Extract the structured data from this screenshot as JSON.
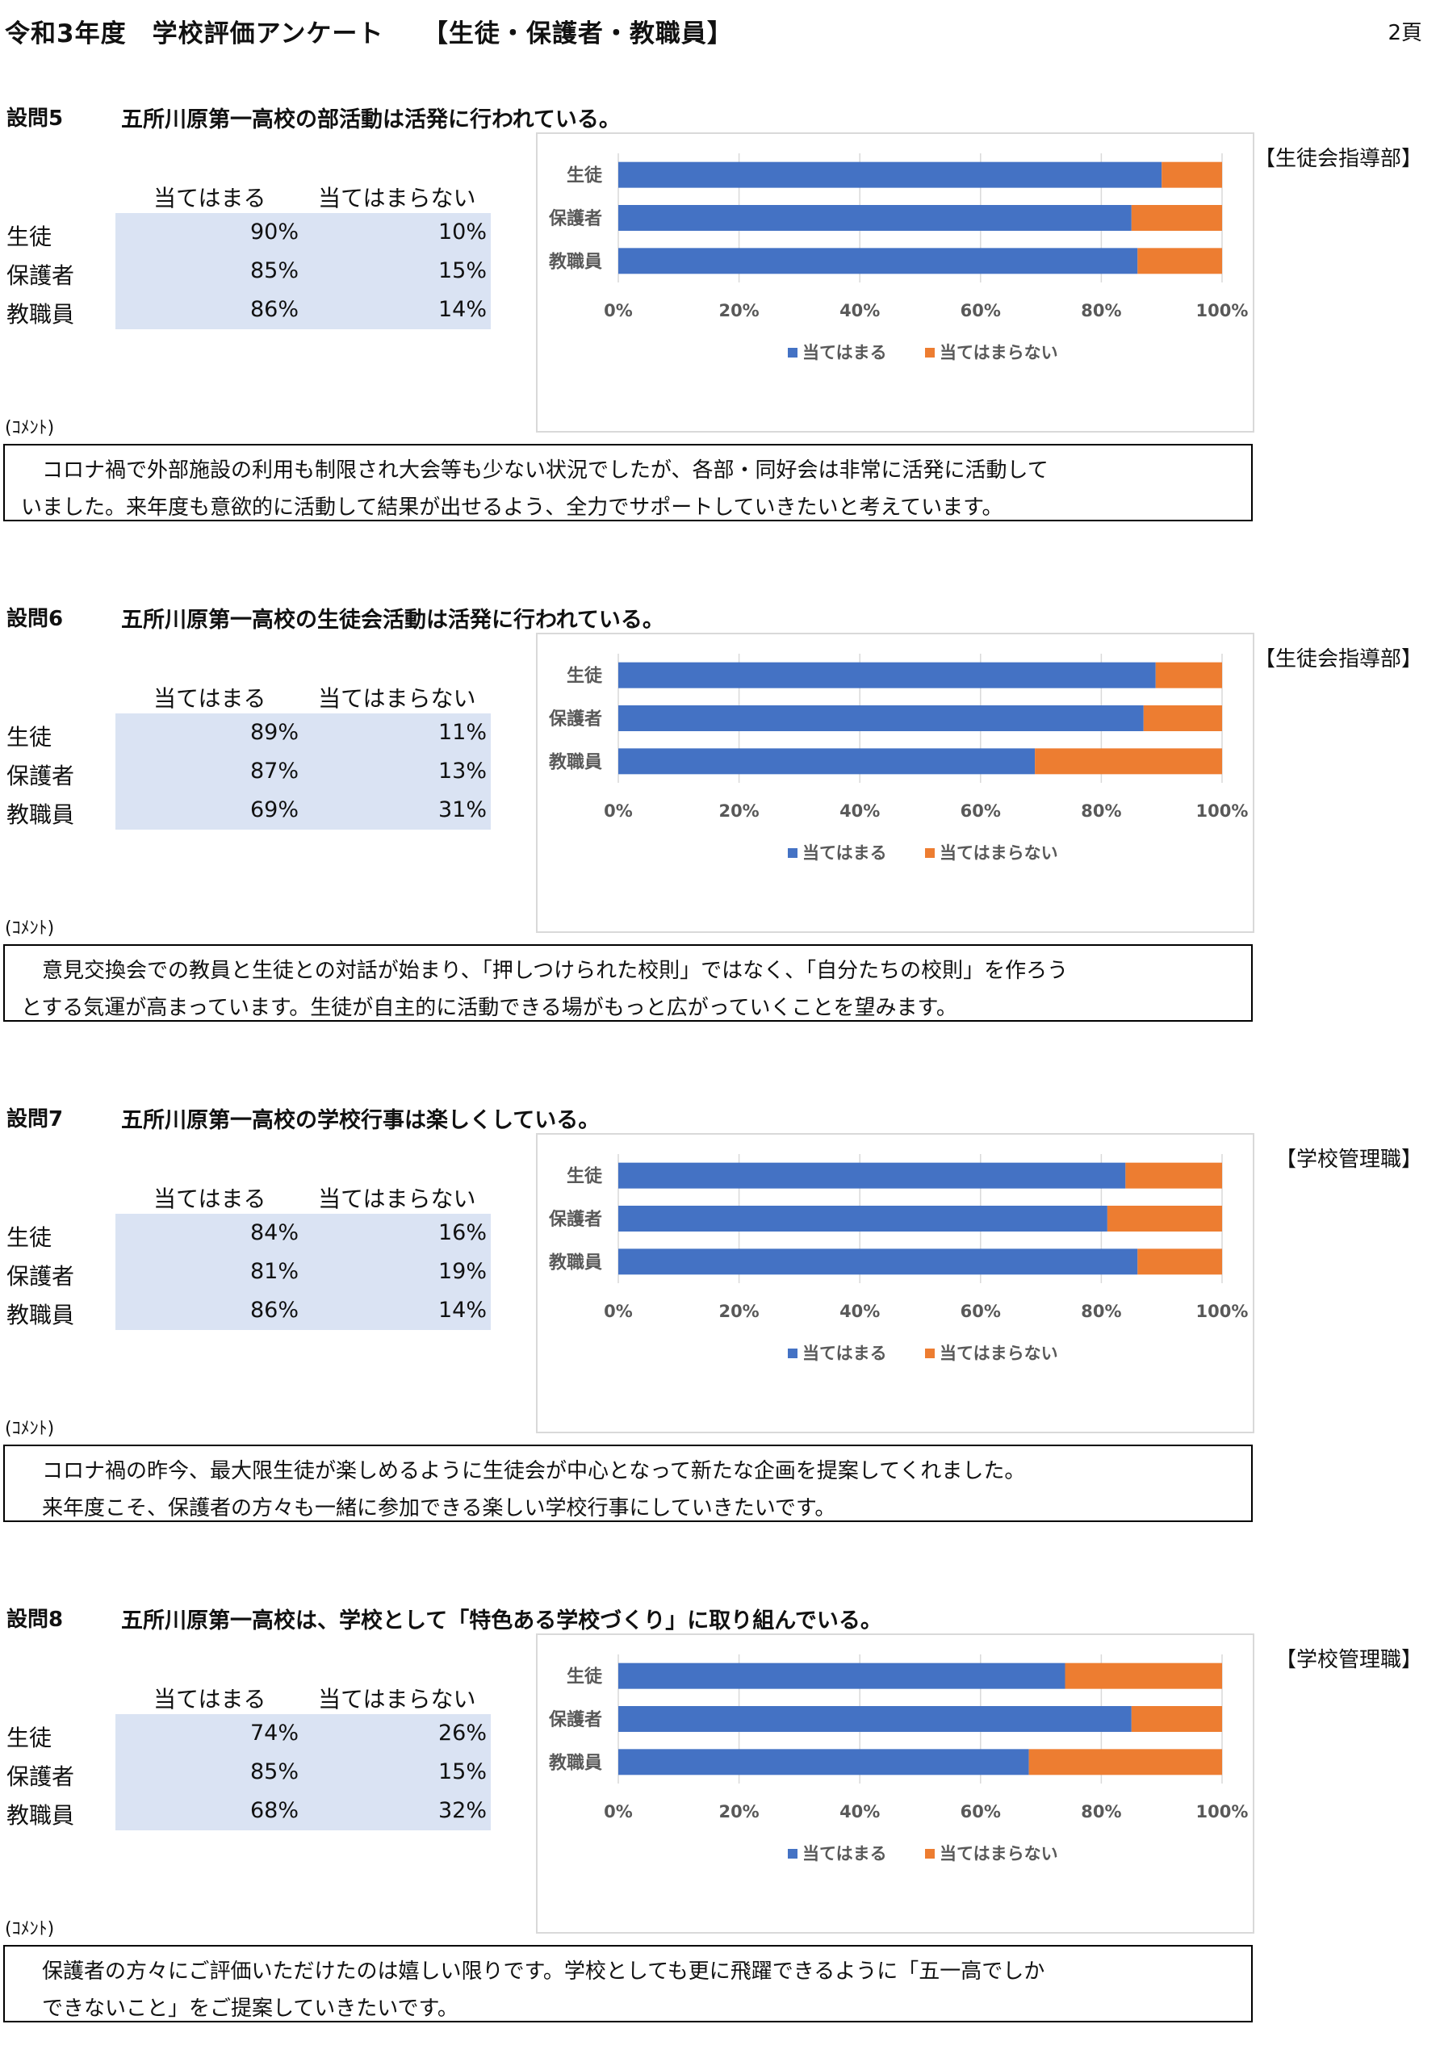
{
  "header": {
    "title": "令和3年度　学校評価アンケート　　【生徒・保護者・教職員】",
    "page": "2頁"
  },
  "columns": [
    "当てはまる",
    "当てはまらない"
  ],
  "respondents": [
    "生徒",
    "保護者",
    "教職員"
  ],
  "axis_ticks": [
    "0%",
    "20%",
    "40%",
    "60%",
    "80%",
    "100%"
  ],
  "comment_label": "(ｺﾒﾝﾄ)",
  "colors": {
    "yes": "#4472c4",
    "no": "#ed7d31",
    "table_bg": "#dae3f3"
  },
  "sections": [
    {
      "number": "設問5",
      "question": "五所川原第一高校の部活動は活発に行われている。",
      "department": "【生徒会指導部】",
      "rows": [
        {
          "label": "生徒",
          "yes": "90%",
          "no": "10%"
        },
        {
          "label": "保護者",
          "yes": "85%",
          "no": "15%"
        },
        {
          "label": "教職員",
          "yes": "86%",
          "no": "14%"
        }
      ],
      "comment": [
        "　コロナ禍で外部施設の利用も制限され大会等も少ない状況でしたが、各部・同好会は非常に活発に活動して",
        "いました。来年度も意欲的に活動して結果が出せるよう、全力でサポートしていきたいと考えています。"
      ]
    },
    {
      "number": "設問6",
      "question": "五所川原第一高校の生徒会活動は活発に行われている。",
      "department": "【生徒会指導部】",
      "rows": [
        {
          "label": "生徒",
          "yes": "89%",
          "no": "11%"
        },
        {
          "label": "保護者",
          "yes": "87%",
          "no": "13%"
        },
        {
          "label": "教職員",
          "yes": "69%",
          "no": "31%"
        }
      ],
      "comment": [
        "　意見交換会での教員と生徒との対話が始まり、「押しつけられた校則」ではなく、「自分たちの校則」を作ろう",
        "とする気運が高まっています。生徒が自主的に活動できる場がもっと広がっていくことを望みます。"
      ]
    },
    {
      "number": "設問7",
      "question": "五所川原第一高校の学校行事は楽しくしている。",
      "department": "【学校管理職】",
      "rows": [
        {
          "label": "生徒",
          "yes": "84%",
          "no": "16%"
        },
        {
          "label": "保護者",
          "yes": "81%",
          "no": "19%"
        },
        {
          "label": "教職員",
          "yes": "86%",
          "no": "14%"
        }
      ],
      "comment": [
        "　コロナ禍の昨今、最大限生徒が楽しめるように生徒会が中心となって新たな企画を提案してくれました。",
        "　来年度こそ、保護者の方々も一緒に参加できる楽しい学校行事にしていきたいです。"
      ]
    },
    {
      "number": "設問8",
      "question": "五所川原第一高校は、学校として「特色ある学校づくり」に取り組んでいる。",
      "department": "【学校管理職】",
      "rows": [
        {
          "label": "生徒",
          "yes": "74%",
          "no": "26%"
        },
        {
          "label": "保護者",
          "yes": "85%",
          "no": "15%"
        },
        {
          "label": "教職員",
          "yes": "68%",
          "no": "32%"
        }
      ],
      "comment": [
        "　保護者の方々にご評価いただけたのは嬉しい限りです。学校としても更に飛躍できるように「五一高でしか",
        "　できないこと」をご提案していきたいです。"
      ]
    }
  ],
  "chart_data": [
    {
      "type": "bar",
      "stacked": true,
      "orientation": "horizontal",
      "categories": [
        "生徒",
        "保護者",
        "教職員"
      ],
      "series": [
        {
          "name": "当てはまる",
          "values": [
            90,
            85,
            86
          ]
        },
        {
          "name": "当てはまらない",
          "values": [
            10,
            15,
            14
          ]
        }
      ],
      "xlim": [
        0,
        100
      ],
      "legend": "bottom"
    },
    {
      "type": "bar",
      "stacked": true,
      "orientation": "horizontal",
      "categories": [
        "生徒",
        "保護者",
        "教職員"
      ],
      "series": [
        {
          "name": "当てはまる",
          "values": [
            89,
            87,
            69
          ]
        },
        {
          "name": "当てはまらない",
          "values": [
            11,
            13,
            31
          ]
        }
      ],
      "xlim": [
        0,
        100
      ],
      "legend": "bottom"
    },
    {
      "type": "bar",
      "stacked": true,
      "orientation": "horizontal",
      "categories": [
        "生徒",
        "保護者",
        "教職員"
      ],
      "series": [
        {
          "name": "当てはまる",
          "values": [
            84,
            81,
            86
          ]
        },
        {
          "name": "当てはまらない",
          "values": [
            16,
            19,
            14
          ]
        }
      ],
      "xlim": [
        0,
        100
      ],
      "legend": "bottom"
    },
    {
      "type": "bar",
      "stacked": true,
      "orientation": "horizontal",
      "categories": [
        "生徒",
        "保護者",
        "教職員"
      ],
      "series": [
        {
          "name": "当てはまる",
          "values": [
            74,
            85,
            68
          ]
        },
        {
          "name": "当てはまらない",
          "values": [
            26,
            15,
            32
          ]
        }
      ],
      "xlim": [
        0,
        100
      ],
      "legend": "bottom"
    }
  ]
}
